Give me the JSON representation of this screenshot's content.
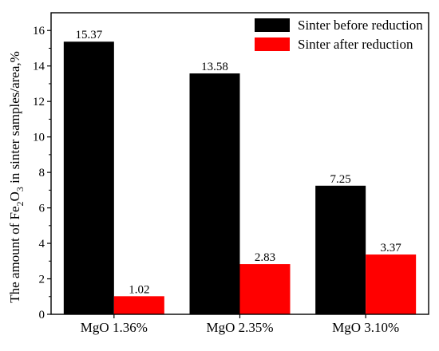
{
  "chart_data": {
    "type": "bar",
    "title": "",
    "xlabel": "",
    "ylabel_parts": [
      "The amount of Fe",
      "2",
      "O",
      "3",
      " in sinter samples/area,%"
    ],
    "categories": [
      "MgO 1.36%",
      "MgO 2.35%",
      "MgO 3.10%"
    ],
    "series": [
      {
        "name": "Sinter before reduction",
        "color": "#000000",
        "values": [
          15.37,
          13.58,
          7.25
        ],
        "labels": [
          "15.37",
          "13.58",
          "7.25"
        ]
      },
      {
        "name": "Sinter after reduction",
        "color": "#ff0000",
        "values": [
          1.02,
          2.83,
          3.37
        ],
        "labels": [
          "1.02",
          "2.83",
          "3.37"
        ]
      }
    ],
    "ylim": [
      0,
      17
    ],
    "yticks": [
      0,
      2,
      4,
      6,
      8,
      10,
      12,
      14,
      16
    ],
    "ytick_labels": [
      "0",
      "2",
      "4",
      "6",
      "8",
      "10",
      "12",
      "14",
      "16"
    ],
    "legend_position": "top-right",
    "grid": false
  }
}
